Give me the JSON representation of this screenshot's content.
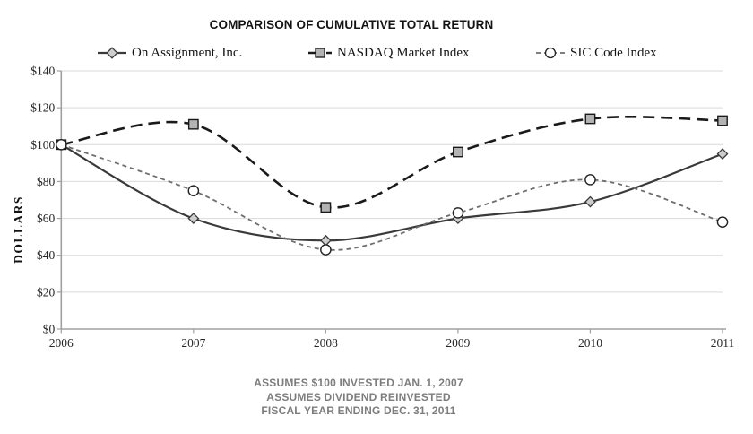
{
  "title": "COMPARISON OF CUMULATIVE TOTAL RETURN",
  "y_axis_title": "DOLLARS",
  "notes": [
    "ASSUMES $100 INVESTED JAN. 1, 2007",
    "ASSUMES DIVIDEND REINVESTED",
    "FISCAL YEAR ENDING DEC. 31, 2011"
  ],
  "chart_data": {
    "type": "line",
    "title": "COMPARISON OF CUMULATIVE TOTAL RETURN",
    "categories": [
      "2006",
      "2007",
      "2008",
      "2009",
      "2010",
      "2011"
    ],
    "series": [
      {
        "name": "On Assignment, Inc.",
        "values": [
          100,
          60,
          48,
          60,
          69,
          95
        ],
        "style": {
          "color": "#3a3a3a",
          "width": 2.2,
          "dash": "",
          "marker": "diamond",
          "marker_fill": "#cdcdcd",
          "marker_stroke": "#3a3a3a"
        }
      },
      {
        "name": "NASDAQ Market Index",
        "values": [
          100,
          111,
          66,
          96,
          114,
          113
        ],
        "style": {
          "color": "#1a1a1a",
          "width": 2.6,
          "dash": "13,7",
          "marker": "square",
          "marker_fill": "#b3b3b3",
          "marker_stroke": "#1a1a1a"
        }
      },
      {
        "name": "SIC Code Index",
        "values": [
          100,
          75,
          43,
          63,
          81,
          58
        ],
        "style": {
          "color": "#6e6e6e",
          "width": 1.8,
          "dash": "5,4",
          "marker": "circle",
          "marker_fill": "#ffffff",
          "marker_stroke": "#222222"
        }
      }
    ],
    "xlabel": "",
    "ylabel": "DOLLARS",
    "ylim": [
      0,
      140
    ],
    "y_tick_step": 20,
    "y_tick_prefix": "$",
    "grid": true,
    "legend_position": "top",
    "line_smoothing": true,
    "colors": {
      "gridline": "#d9d9d9",
      "axis": "#a0a0a0",
      "tick_text": "#262626",
      "note_text": "#7d7d7d"
    }
  }
}
